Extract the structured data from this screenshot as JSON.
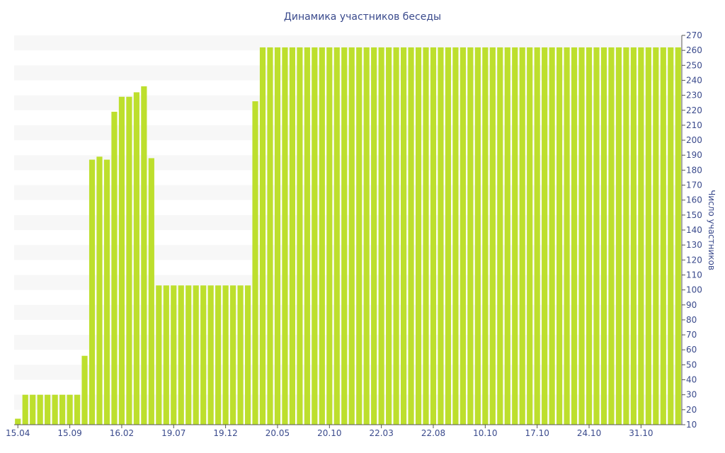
{
  "chart_data": {
    "type": "bar",
    "title": "Динамика участников беседы",
    "ylabel": "Число участников",
    "xlabel": "",
    "ylim": [
      10,
      270
    ],
    "yticks": [
      10,
      20,
      30,
      40,
      50,
      60,
      70,
      80,
      90,
      100,
      110,
      120,
      130,
      140,
      150,
      160,
      170,
      180,
      190,
      200,
      210,
      220,
      230,
      240,
      250,
      260,
      270
    ],
    "xticks": [
      {
        "index": 0,
        "label": "15.04"
      },
      {
        "index": 7,
        "label": "15.09"
      },
      {
        "index": 14,
        "label": "16.02"
      },
      {
        "index": 21,
        "label": "19.07"
      },
      {
        "index": 28,
        "label": "19.12"
      },
      {
        "index": 35,
        "label": "20.05"
      },
      {
        "index": 42,
        "label": "20.10"
      },
      {
        "index": 49,
        "label": "22.03"
      },
      {
        "index": 56,
        "label": "22.08"
      },
      {
        "index": 63,
        "label": "10.10"
      },
      {
        "index": 70,
        "label": "17.10"
      },
      {
        "index": 77,
        "label": "24.10"
      },
      {
        "index": 84,
        "label": "31.10"
      }
    ],
    "values": [
      14,
      30,
      30,
      30,
      30,
      30,
      30,
      30,
      30,
      56,
      187,
      189,
      187,
      219,
      229,
      229,
      232,
      236,
      188,
      103,
      103,
      103,
      103,
      103,
      103,
      103,
      103,
      103,
      103,
      103,
      103,
      103,
      226,
      262,
      262,
      262,
      262,
      262,
      262,
      262,
      262,
      262,
      262,
      262,
      262,
      262,
      262,
      262,
      262,
      262,
      262,
      262,
      262,
      262,
      262,
      262,
      262,
      262,
      262,
      262,
      262,
      262,
      262,
      262,
      262,
      262,
      262,
      262,
      262,
      262,
      262,
      262,
      262,
      262,
      262,
      262,
      262,
      262,
      262,
      262,
      262,
      262,
      262,
      262,
      262,
      262,
      262,
      262,
      262,
      262
    ],
    "bar_color": "#bddf2d",
    "band_color": "#f7f7f7",
    "text_color": "#3a4a8c",
    "axis_color": "#555555",
    "grid": "alternating-bands",
    "yaxis_side": "right"
  }
}
